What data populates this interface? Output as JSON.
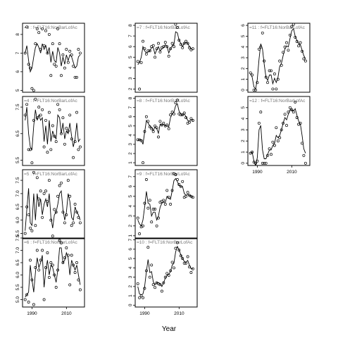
{
  "chart_data": {
    "type": "scatter",
    "xlabel": "Year",
    "x_ticks": [
      1990,
      2010
    ],
    "panels": [
      {
        "label": "=3 : f=FLT16:NorBarLofAc",
        "col": 0,
        "row": 0,
        "ylim": [
          4.9,
          8.6
        ],
        "y_ticks": [
          5.0,
          6.0,
          7.0,
          8.0
        ],
        "x": [
          1986,
          1987,
          1988,
          1989,
          1990,
          1991,
          1992,
          1993,
          1994,
          1995,
          1996,
          1997,
          1998,
          1999,
          2000,
          2001,
          2002,
          2003,
          2004,
          2005,
          2006,
          2007,
          2008,
          2009,
          2010,
          2011,
          2012,
          2013,
          2014,
          2015,
          2016,
          2017,
          2018
        ],
        "values": [
          7.0,
          8.4,
          6.4,
          6.2,
          5.1,
          5.0,
          7.5,
          8.3,
          8.1,
          7.2,
          8.3,
          7.4,
          8.2,
          7.0,
          8.0,
          5.8,
          7.5,
          6.4,
          6.3,
          8.3,
          7.5,
          5.8,
          6.9,
          6.2,
          7.2,
          6.5,
          7.1,
          6.9,
          6.3,
          5.7,
          5.7,
          7.2,
          7.0
        ],
        "fit": [
          7.0,
          7.4,
          6.6,
          6.0,
          6.2,
          6.8,
          7.3,
          7.5,
          7.3,
          7.0,
          7.5,
          7.2,
          7.4,
          7.0,
          7.3,
          6.5,
          7.1,
          6.6,
          6.5,
          7.3,
          7.0,
          6.3,
          6.8,
          6.4,
          6.9,
          6.6,
          6.9,
          6.8,
          6.5,
          6.2,
          6.3,
          6.8,
          6.9
        ]
      },
      {
        "label": "=4 : f=FLT16:NorBarLofAc",
        "col": 0,
        "row": 1,
        "ylim": [
          5.3,
          7.9
        ],
        "y_ticks": [
          5.5,
          6.5,
          7.5
        ],
        "x": [
          1986,
          1987,
          1988,
          1989,
          1990,
          1991,
          1992,
          1993,
          1994,
          1995,
          1996,
          1997,
          1998,
          1999,
          2000,
          2001,
          2002,
          2003,
          2004,
          2005,
          2006,
          2007,
          2008,
          2009,
          2010,
          2011,
          2012,
          2013,
          2014,
          2015,
          2016,
          2017,
          2018
        ],
        "values": [
          7.2,
          7.6,
          5.9,
          5.9,
          5.4,
          7.0,
          7.8,
          7.1,
          7.5,
          7.2,
          7.4,
          6.0,
          7.0,
          5.8,
          7.3,
          5.9,
          6.8,
          6.4,
          6.2,
          7.6,
          7.4,
          6.5,
          7.1,
          6.1,
          6.7,
          6.6,
          7.2,
          6.3,
          5.6,
          6.2,
          7.3,
          5.9,
          6.0
        ],
        "fit": [
          7.0,
          7.5,
          6.5,
          6.0,
          5.9,
          6.8,
          7.4,
          7.0,
          7.2,
          7.0,
          7.1,
          6.2,
          6.8,
          6.1,
          7.0,
          6.2,
          6.6,
          6.4,
          6.3,
          7.2,
          7.1,
          6.5,
          6.9,
          6.3,
          6.6,
          6.5,
          6.9,
          6.4,
          6.0,
          6.3,
          6.9,
          6.2,
          6.3
        ]
      },
      {
        "label": "=5 : f=FLT16:NorBarLofAc",
        "col": 0,
        "row": 2,
        "ylim": [
          5.3,
          7.9
        ],
        "y_ticks": [
          5.5,
          6.0,
          6.5,
          7.0,
          7.5
        ],
        "x": [
          1986,
          1987,
          1988,
          1989,
          1990,
          1991,
          1992,
          1993,
          1994,
          1995,
          1996,
          1997,
          1998,
          1999,
          2000,
          2001,
          2002,
          2003,
          2004,
          2005,
          2006,
          2007,
          2008,
          2009,
          2010,
          2011,
          2012,
          2013,
          2014,
          2015,
          2016,
          2017,
          2018
        ],
        "values": [
          5.5,
          6.5,
          6.2,
          5.7,
          5.6,
          7.8,
          5.8,
          7.6,
          6.8,
          7.1,
          6.1,
          7.0,
          7.1,
          6.7,
          7.5,
          6.0,
          5.4,
          6.4,
          6.3,
          6.9,
          7.3,
          7.4,
          6.3,
          5.9,
          6.2,
          7.5,
          6.9,
          5.8,
          5.9,
          6.6,
          6.3,
          6.1,
          5.9
        ],
        "fit": [
          5.6,
          6.4,
          7.2,
          5.9,
          5.8,
          7.0,
          6.0,
          7.0,
          6.5,
          6.8,
          6.2,
          6.6,
          6.8,
          6.5,
          7.0,
          6.1,
          5.7,
          6.2,
          6.3,
          6.6,
          7.0,
          7.1,
          6.4,
          6.0,
          6.3,
          7.0,
          6.7,
          6.1,
          6.0,
          6.5,
          6.3,
          6.2,
          6.0
        ]
      },
      {
        "label": "=6 : f=FLT16:NorBarLofAc",
        "col": 0,
        "row": 3,
        "ylim": [
          4.7,
          7.5
        ],
        "y_ticks": [
          5.0,
          5.5,
          6.0,
          6.5,
          7.0,
          7.5
        ],
        "x": [
          1986,
          1987,
          1988,
          1989,
          1990,
          1991,
          1992,
          1993,
          1994,
          1995,
          1996,
          1997,
          1998,
          1999,
          2000,
          2001,
          2002,
          2003,
          2004,
          2005,
          2006,
          2007,
          2008,
          2009,
          2010,
          2011,
          2012,
          2013,
          2014,
          2015,
          2016,
          2017,
          2018
        ],
        "values": [
          5.0,
          5.2,
          4.9,
          6.6,
          5.8,
          4.8,
          6.3,
          7.0,
          6.2,
          6.6,
          7.0,
          5.0,
          6.3,
          6.9,
          5.9,
          6.5,
          6.4,
          6.0,
          5.5,
          6.2,
          7.4,
          7.3,
          6.5,
          6.7,
          7.1,
          6.8,
          5.6,
          6.8,
          6.4,
          6.1,
          6.5,
          5.8,
          5.4
        ],
        "fit": [
          5.1,
          5.2,
          5.3,
          6.4,
          5.8,
          5.3,
          6.1,
          6.7,
          6.3,
          6.5,
          6.8,
          5.5,
          6.2,
          6.6,
          6.0,
          6.4,
          6.3,
          6.0,
          5.7,
          6.2,
          7.1,
          7.1,
          6.5,
          6.6,
          6.9,
          6.7,
          6.0,
          6.6,
          6.4,
          6.2,
          6.4,
          6.0,
          5.6
        ]
      },
      {
        "label": "=7 : f=FLT16:NorBarLofAc",
        "col": 1,
        "row": 0,
        "ylim": [
          1.7,
          8.2
        ],
        "y_ticks": [
          2,
          3,
          4,
          5,
          6,
          7,
          8
        ],
        "x": [
          1986,
          1987,
          1988,
          1989,
          1990,
          1991,
          1992,
          1993,
          1994,
          1995,
          1996,
          1997,
          1998,
          1999,
          2000,
          2001,
          2002,
          2003,
          2004,
          2005,
          2006,
          2007,
          2008,
          2009,
          2010,
          2011,
          2012,
          2013,
          2014,
          2015,
          2016,
          2017,
          2018
        ],
        "values": [
          4.6,
          2.0,
          4.5,
          6.5,
          5.8,
          5.3,
          5.6,
          5.6,
          6.0,
          6.1,
          5.0,
          5.8,
          6.3,
          5.5,
          5.9,
          6.0,
          6.4,
          6.0,
          5.1,
          5.8,
          6.3,
          6.0,
          8.1,
          7.8,
          6.6,
          6.2,
          5.9,
          6.3,
          6.5,
          6.3,
          5.9,
          5.7,
          5.8
        ],
        "fit": [
          4.3,
          4.5,
          5.0,
          6.0,
          5.6,
          5.4,
          5.5,
          5.6,
          5.9,
          5.9,
          5.3,
          5.7,
          6.0,
          5.6,
          5.8,
          5.9,
          6.2,
          6.0,
          5.4,
          5.8,
          6.1,
          6.2,
          7.4,
          7.3,
          6.6,
          6.3,
          6.0,
          6.3,
          6.4,
          6.3,
          6.0,
          5.8,
          5.7
        ]
      },
      {
        "label": "=8 : f=FLT16:NorBarLofAc",
        "col": 1,
        "row": 1,
        "ylim": [
          0.7,
          8.2
        ],
        "y_ticks": [
          1,
          2,
          3,
          4,
          5,
          6,
          7,
          8
        ],
        "x": [
          1986,
          1987,
          1988,
          1989,
          1990,
          1991,
          1992,
          1993,
          1994,
          1995,
          1996,
          1997,
          1998,
          1999,
          2000,
          2001,
          2002,
          2003,
          2004,
          2005,
          2006,
          2007,
          2008,
          2009,
          2010,
          2011,
          2012,
          2013,
          2014,
          2015,
          2016,
          2017,
          2018
        ],
        "values": [
          3.5,
          3.5,
          3.4,
          1.0,
          4.4,
          6.0,
          5.5,
          4.9,
          4.7,
          4.4,
          5.0,
          4.8,
          3.8,
          5.5,
          5.1,
          5.3,
          5.0,
          5.1,
          4.7,
          6.2,
          6.5,
          6.3,
          7.5,
          7.8,
          6.3,
          6.2,
          6.2,
          6.4,
          5.9,
          5.3,
          5.4,
          5.8,
          5.6
        ],
        "fit": [
          3.4,
          3.5,
          3.5,
          3.0,
          4.3,
          5.6,
          5.3,
          5.0,
          4.8,
          4.5,
          4.9,
          4.7,
          4.2,
          5.2,
          5.1,
          5.2,
          5.0,
          5.0,
          4.9,
          5.9,
          6.3,
          6.5,
          7.2,
          7.4,
          6.6,
          6.3,
          6.2,
          6.3,
          6.0,
          5.6,
          5.5,
          5.7,
          5.6
        ]
      },
      {
        "label": "=9 : f=FLT16:NorBarLofAc",
        "col": 1,
        "row": 2,
        "ylim": [
          0.7,
          7.7
        ],
        "y_ticks": [
          1,
          2,
          3,
          4,
          5,
          6,
          7
        ],
        "x": [
          1986,
          1987,
          1988,
          1989,
          1990,
          1991,
          1992,
          1993,
          1994,
          1995,
          1996,
          1997,
          1998,
          1999,
          2000,
          2001,
          2002,
          2003,
          2004,
          2005,
          2006,
          2007,
          2008,
          2009,
          2010,
          2011,
          2012,
          2013,
          2014,
          2015,
          2016,
          2017,
          2018
        ],
        "values": [
          2.8,
          1.2,
          1.9,
          2.0,
          4.3,
          6.7,
          3.8,
          4.6,
          2.4,
          3.7,
          3.7,
          2.0,
          2.8,
          4.4,
          4.5,
          4.6,
          4.2,
          5.6,
          4.9,
          4.2,
          5.6,
          7.3,
          7.2,
          6.7,
          6.2,
          6.0,
          6.5,
          4.9,
          5.0,
          5.4,
          5.1,
          5.0,
          4.9
        ],
        "fit": [
          2.6,
          2.2,
          2.0,
          2.6,
          3.9,
          5.5,
          4.3,
          4.2,
          3.0,
          3.4,
          3.4,
          2.6,
          3.0,
          3.9,
          4.3,
          4.4,
          4.4,
          5.0,
          4.8,
          4.7,
          5.6,
          6.6,
          6.8,
          6.5,
          6.1,
          6.0,
          6.0,
          5.3,
          5.1,
          5.2,
          5.1,
          5.0,
          4.9
        ]
      },
      {
        "label": "=10 : f=FLT16:NorBarLofAc",
        "col": 1,
        "row": 3,
        "ylim": [
          -0.2,
          7.2
        ],
        "y_ticks": [
          0,
          1,
          2,
          3,
          4,
          5,
          6,
          7
        ],
        "x": [
          1986,
          1987,
          1988,
          1989,
          1990,
          1991,
          1992,
          1993,
          1994,
          1995,
          1996,
          1997,
          1998,
          1999,
          2000,
          2001,
          2002,
          2003,
          2004,
          2005,
          2006,
          2007,
          2008,
          2009,
          2010,
          2011,
          2012,
          2013,
          2014,
          2015,
          2016,
          2017,
          2018
        ],
        "values": [
          2.3,
          0.8,
          1.0,
          0.8,
          1.8,
          3.7,
          6.2,
          3.0,
          4.3,
          2.2,
          1.9,
          2.4,
          2.3,
          2.2,
          1.5,
          2.4,
          3.0,
          3.4,
          3.2,
          3.7,
          4.6,
          4.0,
          6.1,
          6.7,
          5.9,
          5.3,
          5.0,
          4.5,
          4.5,
          5.2,
          4.1,
          3.5,
          3.9
        ],
        "fit": [
          2.0,
          1.2,
          1.1,
          1.2,
          2.0,
          3.6,
          4.9,
          3.5,
          3.6,
          2.5,
          2.2,
          2.4,
          2.4,
          2.3,
          2.0,
          2.4,
          2.9,
          3.2,
          3.3,
          3.6,
          4.3,
          4.5,
          5.7,
          6.3,
          5.9,
          5.4,
          5.0,
          4.7,
          4.6,
          4.8,
          4.3,
          3.9,
          3.9
        ]
      },
      {
        "label": "=11 : f=FLT16:NorBarLofAc",
        "col": 2,
        "row": 0,
        "ylim": [
          -0.2,
          6.2
        ],
        "y_ticks": [
          0,
          1,
          2,
          3,
          4,
          5,
          6
        ],
        "x": [
          1986,
          1987,
          1988,
          1989,
          1990,
          1991,
          1992,
          1993,
          1994,
          1995,
          1996,
          1997,
          1998,
          1999,
          2000,
          2001,
          2002,
          2003,
          2004,
          2005,
          2006,
          2007,
          2008,
          2009,
          2010,
          2011,
          2012,
          2013,
          2014,
          2015,
          2016,
          2017,
          2018
        ],
        "values": [
          1.6,
          1.4,
          0.0,
          0.0,
          0.7,
          3.8,
          4.0,
          5.3,
          2.7,
          1.2,
          0.7,
          1.8,
          1.8,
          0.1,
          1.5,
          0.1,
          1.0,
          2.7,
          2.3,
          3.5,
          4.0,
          4.4,
          3.7,
          5.1,
          5.9,
          6.1,
          4.9,
          4.5,
          4.1,
          4.4,
          3.6,
          2.9,
          2.7
        ],
        "fit": [
          1.5,
          1.2,
          0.3,
          0.1,
          1.0,
          2.9,
          4.3,
          3.8,
          2.4,
          1.2,
          0.9,
          1.4,
          1.4,
          0.6,
          1.1,
          0.7,
          1.2,
          2.2,
          2.5,
          3.2,
          3.8,
          4.1,
          4.0,
          4.8,
          5.5,
          5.7,
          5.0,
          4.6,
          4.3,
          4.2,
          3.7,
          3.2,
          2.9
        ]
      },
      {
        "label": "=12 : f=FLT16:NorBarLofAc",
        "col": 2,
        "row": 1,
        "ylim": [
          -0.2,
          6.0
        ],
        "y_ticks": [
          0,
          1,
          2,
          3,
          4,
          5
        ],
        "x": [
          1986,
          1987,
          1988,
          1989,
          1990,
          1991,
          1992,
          1993,
          1994,
          1995,
          1996,
          1997,
          1998,
          1999,
          2000,
          2001,
          2002,
          2003,
          2004,
          2005,
          2006,
          2007,
          2008,
          2009,
          2010,
          2011,
          2012,
          2013,
          2014,
          2015,
          2016,
          2017,
          2018
        ],
        "values": [
          0.9,
          1.0,
          0.1,
          0.0,
          0.2,
          3.6,
          4.6,
          0.0,
          0.0,
          0.0,
          0.7,
          1.3,
          0.8,
          1.9,
          1.6,
          3.2,
          2.0,
          2.3,
          3.0,
          3.6,
          4.4,
          3.4,
          4.6,
          5.0,
          4.8,
          4.6,
          5.5,
          4.1,
          3.5,
          3.6,
          1.8,
          0.7,
          0.0
        ],
        "fit": [
          0.9,
          1.0,
          0.2,
          -0.2,
          0.5,
          3.0,
          3.4,
          1.2,
          0.4,
          0.4,
          0.8,
          1.2,
          1.2,
          1.6,
          1.8,
          2.5,
          2.3,
          2.5,
          3.0,
          3.6,
          4.1,
          3.9,
          4.4,
          4.8,
          4.8,
          4.7,
          4.9,
          4.3,
          3.8,
          3.5,
          2.5,
          1.3,
          0.9
        ]
      }
    ]
  }
}
